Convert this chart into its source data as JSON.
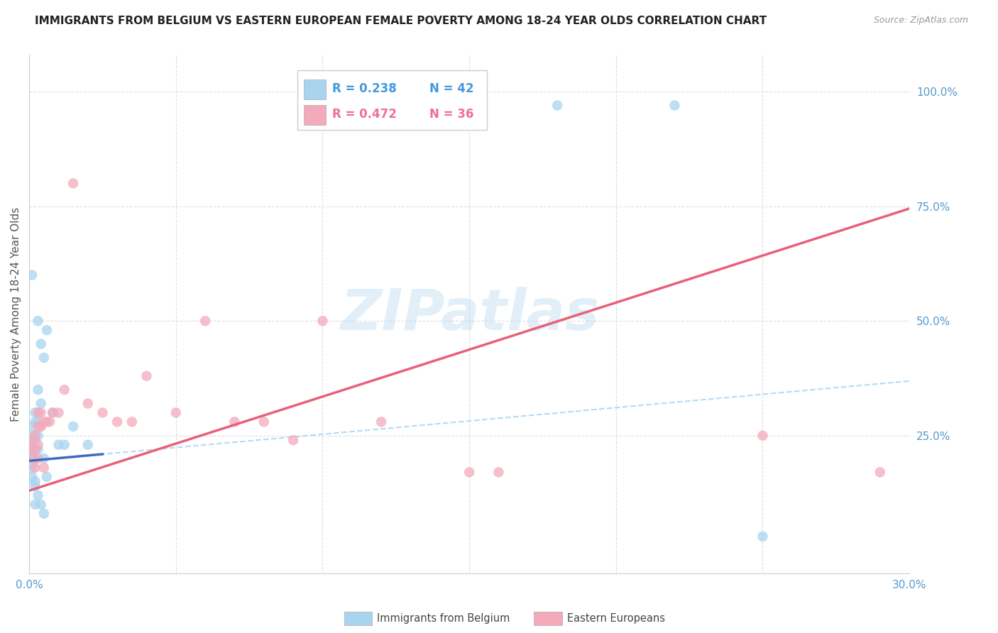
{
  "title": "IMMIGRANTS FROM BELGIUM VS EASTERN EUROPEAN FEMALE POVERTY AMONG 18-24 YEAR OLDS CORRELATION CHART",
  "source": "Source: ZipAtlas.com",
  "ylabel": "Female Poverty Among 18-24 Year Olds",
  "watermark_text": "ZIPatlas",
  "legend_blue_R": "R = 0.238",
  "legend_blue_N": "N = 42",
  "legend_pink_R": "R = 0.472",
  "legend_pink_N": "N = 36",
  "blue_scatter_color": "#A8D4F0",
  "pink_scatter_color": "#F4AABB",
  "blue_line_color": "#3B6CC4",
  "pink_line_color": "#E8607A",
  "blue_dashed_color": "#A8D4F0",
  "pink_dashed_color": "#F4AABB",
  "legend_R_color": "#4499DD",
  "legend_N_color": "#4499DD",
  "legend_pink_R_color": "#F07090",
  "legend_pink_N_color": "#F07090",
  "tick_color": "#5599CC",
  "xlim": [
    0.0,
    0.3
  ],
  "ylim": [
    -0.05,
    1.08
  ],
  "xtick_positions": [
    0.0,
    0.05,
    0.1,
    0.15,
    0.2,
    0.25,
    0.3
  ],
  "ytick_positions": [
    0.0,
    0.25,
    0.5,
    0.75,
    1.0
  ],
  "ytick_labels": [
    "",
    "25.0%",
    "50.0%",
    "75.0%",
    "100.0%"
  ],
  "blue_x": [
    0.001,
    0.001,
    0.001,
    0.001,
    0.001,
    0.001,
    0.001,
    0.001,
    0.002,
    0.002,
    0.002,
    0.002,
    0.002,
    0.002,
    0.003,
    0.003,
    0.003,
    0.003,
    0.004,
    0.004,
    0.005,
    0.005,
    0.006,
    0.008,
    0.01,
    0.012,
    0.015,
    0.02,
    0.002,
    0.003,
    0.004,
    0.005,
    0.006,
    0.002,
    0.001,
    0.18,
    0.22,
    0.25,
    0.001,
    0.003,
    0.004,
    0.002
  ],
  "blue_y": [
    0.22,
    0.25,
    0.27,
    0.2,
    0.19,
    0.23,
    0.18,
    0.21,
    0.25,
    0.28,
    0.3,
    0.22,
    0.2,
    0.24,
    0.35,
    0.28,
    0.25,
    0.22,
    0.32,
    0.27,
    0.42,
    0.2,
    0.48,
    0.3,
    0.23,
    0.23,
    0.27,
    0.23,
    0.1,
    0.12,
    0.1,
    0.08,
    0.16,
    0.15,
    0.16,
    0.97,
    0.97,
    0.03,
    0.6,
    0.5,
    0.45,
    0.14
  ],
  "pink_x": [
    0.001,
    0.001,
    0.001,
    0.002,
    0.002,
    0.002,
    0.003,
    0.003,
    0.003,
    0.003,
    0.004,
    0.004,
    0.005,
    0.005,
    0.006,
    0.007,
    0.008,
    0.01,
    0.012,
    0.015,
    0.02,
    0.025,
    0.03,
    0.035,
    0.04,
    0.05,
    0.06,
    0.07,
    0.08,
    0.09,
    0.1,
    0.12,
    0.15,
    0.16,
    0.25,
    0.29
  ],
  "pink_y": [
    0.22,
    0.24,
    0.2,
    0.25,
    0.22,
    0.18,
    0.3,
    0.27,
    0.23,
    0.2,
    0.27,
    0.3,
    0.28,
    0.18,
    0.28,
    0.28,
    0.3,
    0.3,
    0.35,
    0.8,
    0.32,
    0.3,
    0.28,
    0.28,
    0.38,
    0.3,
    0.5,
    0.28,
    0.28,
    0.24,
    0.5,
    0.28,
    0.17,
    0.17,
    0.25,
    0.17
  ],
  "blue_line_intercept": 0.195,
  "blue_line_slope": 0.58,
  "pink_line_intercept": 0.13,
  "pink_line_slope": 2.05
}
